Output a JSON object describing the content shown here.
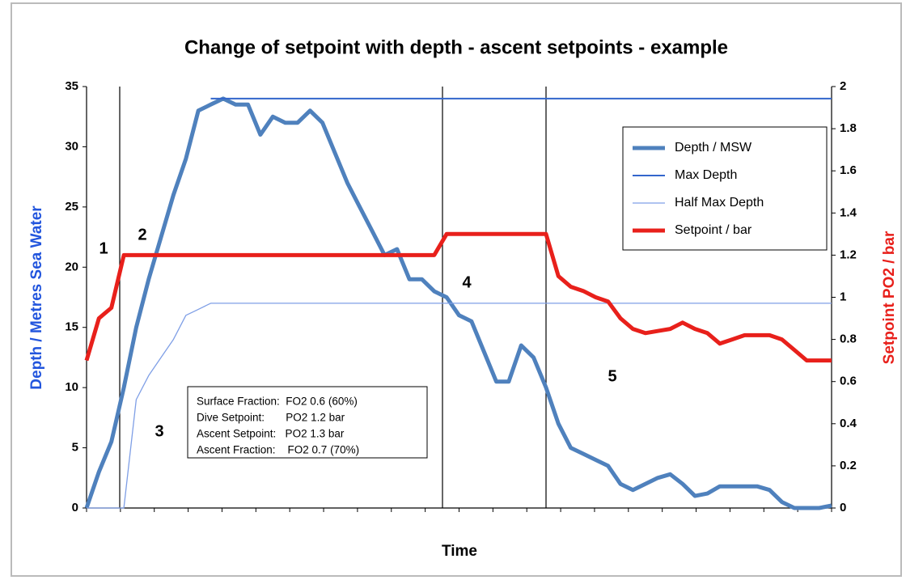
{
  "chart_data": {
    "type": "line",
    "title": "Change of setpoint with depth - ascent setpoints - example",
    "x_label": "Time",
    "y_label": "Depth / Metres Sea Water",
    "y2_label": "Setpoint PO2 / bar",
    "categories": [
      null,
      null,
      null,
      null,
      null,
      null,
      null,
      null,
      null,
      null,
      null,
      null,
      null,
      null,
      null,
      null,
      null,
      null,
      null,
      null,
      null,
      null,
      null,
      null,
      null,
      null,
      null,
      null,
      null,
      null,
      null,
      null,
      null,
      null,
      null,
      null,
      null,
      null,
      null,
      null,
      null,
      null,
      null,
      null,
      null,
      null,
      null,
      null,
      null,
      null,
      null,
      null,
      null,
      null,
      null,
      null,
      null,
      null,
      null,
      null,
      null
    ],
    "ylim": [
      0,
      35
    ],
    "yticks": [
      0,
      5,
      10,
      15,
      20,
      25,
      30,
      35
    ],
    "y2lim": [
      0,
      2
    ],
    "y2ticks": [
      0,
      0.2,
      0.4,
      0.6,
      0.8,
      1,
      1.2,
      1.4,
      1.6,
      1.8,
      2
    ],
    "legend": "upper right",
    "series": [
      {
        "name": "Depth / MSW",
        "color": "#4f81bd",
        "values": [
          0,
          3,
          5.5,
          10,
          15,
          19,
          22.5,
          26,
          29,
          33,
          33.5,
          34,
          33.5,
          33.5,
          31,
          32.5,
          32,
          32,
          33,
          32,
          29.5,
          27,
          25,
          23,
          21,
          21.5,
          19,
          19,
          18,
          17.5,
          16,
          15.5,
          13,
          10.5,
          10.5,
          13.5,
          12.5,
          10,
          7,
          5,
          4.5,
          4,
          3.5,
          2,
          1.5,
          2,
          2.5,
          2.8,
          2,
          1,
          1.2,
          1.8,
          1.8,
          1.8,
          1.8,
          1.5,
          0.5,
          0,
          0,
          0,
          0.2
        ]
      },
      {
        "name": "Max Depth",
        "color": "#3366cc",
        "values": [
          null,
          null,
          null,
          null,
          null,
          null,
          null,
          null,
          null,
          null,
          34,
          34,
          34,
          34,
          34,
          34,
          34,
          34,
          34,
          34,
          34,
          34,
          34,
          34,
          34,
          34,
          34,
          34,
          34,
          34,
          34,
          34,
          34,
          34,
          34,
          34,
          34,
          34,
          34,
          34,
          34,
          34,
          34,
          34,
          34,
          34,
          34,
          34,
          34,
          34,
          34,
          34,
          34,
          34,
          34,
          34,
          34,
          34,
          34,
          34,
          34
        ]
      },
      {
        "name": "Half Max Depth",
        "color": "#7f9fe6",
        "values": [
          0,
          0,
          0,
          0,
          9,
          11,
          12.5,
          14,
          16,
          16.5,
          17,
          17,
          17,
          17,
          17,
          17,
          17,
          17,
          17,
          17,
          17,
          17,
          17,
          17,
          17,
          17,
          17,
          17,
          17,
          17,
          17,
          17,
          17,
          17,
          17,
          17,
          17,
          17,
          17,
          17,
          17,
          17,
          17,
          17,
          17,
          17,
          17,
          17,
          17,
          17,
          17,
          17,
          17,
          17,
          17,
          17,
          17,
          17,
          17,
          17,
          17
        ]
      },
      {
        "name": "Setpoint / bar",
        "color": "#e8201b",
        "axis": "y2",
        "values": [
          0.7,
          0.9,
          0.95,
          1.2,
          1.2,
          1.2,
          1.2,
          1.2,
          1.2,
          1.2,
          1.2,
          1.2,
          1.2,
          1.2,
          1.2,
          1.2,
          1.2,
          1.2,
          1.2,
          1.2,
          1.2,
          1.2,
          1.2,
          1.2,
          1.2,
          1.2,
          1.2,
          1.2,
          1.2,
          1.3,
          1.3,
          1.3,
          1.3,
          1.3,
          1.3,
          1.3,
          1.3,
          1.3,
          1.1,
          1.05,
          1.03,
          1,
          0.98,
          0.9,
          0.85,
          0.83,
          0.84,
          0.85,
          0.88,
          0.85,
          0.83,
          0.78,
          0.8,
          0.82,
          0.82,
          0.82,
          0.8,
          0.75,
          0.7,
          0.7,
          0.7
        ]
      }
    ],
    "annotations": [
      "1",
      "2",
      "3",
      "4",
      "5"
    ],
    "text_box": [
      "Surface Fraction:  FO2 0.6 (60%)",
      "Dive Setpoint:       PO2 1.2 bar",
      "Ascent Setpoint:   PO2 1.3 bar",
      "Ascent Fraction:    FO2 0.7 (70%)"
    ]
  }
}
